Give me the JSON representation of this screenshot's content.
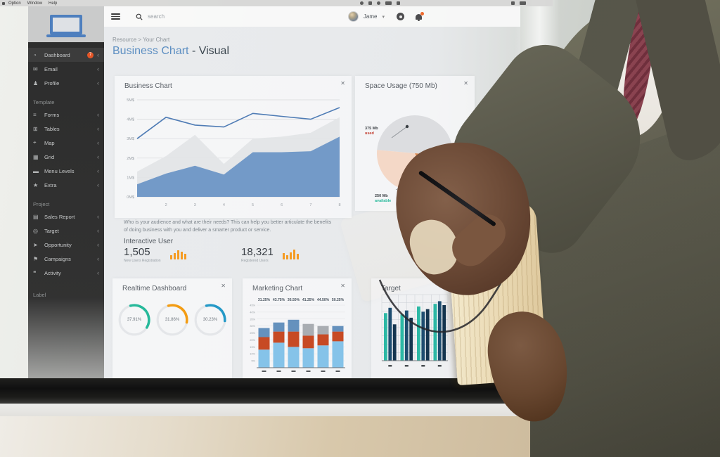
{
  "os_menubar": {
    "items": [
      "Option",
      "Window",
      "Help"
    ]
  },
  "topbar": {
    "search_placeholder": "search",
    "user_name": "Jame"
  },
  "header": {
    "breadcrumb": "Resource > Your Chart",
    "title": "Business Chart",
    "subtitle": " - Visual"
  },
  "sidebar": {
    "main_items": [
      {
        "label": "Dashboard",
        "badge": "7"
      },
      {
        "label": "Email"
      },
      {
        "label": "Profile"
      }
    ],
    "sections": [
      {
        "title": "Template",
        "items": [
          {
            "label": "Forms"
          },
          {
            "label": "Tables"
          },
          {
            "label": "Map"
          },
          {
            "label": "Grid"
          },
          {
            "label": "Menu Levels"
          },
          {
            "label": "Extra"
          }
        ]
      },
      {
        "title": "Project",
        "items": [
          {
            "label": "Sales Report"
          },
          {
            "label": "Target"
          },
          {
            "label": "Opportunity"
          },
          {
            "label": "Campaigns"
          },
          {
            "label": "Activity"
          }
        ]
      }
    ],
    "footer_label": "Label"
  },
  "description": "Who is your audience and what are their needs? This can help you better articulate the benefits of doing business with you and deliver a smarter product or service.",
  "stats": {
    "heading": "Interactive User",
    "items": [
      {
        "value": "1,505",
        "label": "New Users Registration",
        "bars": [
          6,
          9,
          13,
          11,
          8
        ]
      },
      {
        "value": "18,321",
        "label": "Registered Users",
        "bars": [
          9,
          6,
          10,
          14,
          8
        ]
      }
    ]
  },
  "colors": {
    "accent_blue": "#5d8fc2",
    "area_blue": "#6d96c6",
    "area_gray": "#e2e4e6",
    "line_blue": "#4f7cb5",
    "orange": "#f59b22",
    "badge_orange": "#e55627",
    "donut_green": "#26b99a",
    "donut_orange": "#f39c12",
    "donut_blue": "#2499c7",
    "pie_gray": "#dcdde0",
    "pie_orange": "#dd8a52",
    "pie_peach": "#f4d8c7",
    "bar_light_blue": "#85c3e9",
    "bar_red": "#c74a24",
    "bar_steel": "#6591bd",
    "bar_gray": "#a9adb2",
    "target_teal": "#2cb8a5",
    "target_navy": "#1d4d70",
    "target_dark": "#14354f"
  },
  "chart_data": [
    {
      "id": "business_chart",
      "type": "area",
      "title": "Business Chart",
      "x": [
        1,
        2,
        3,
        4,
        5,
        6,
        7,
        8
      ],
      "xticks": [
        "2",
        "3",
        "4",
        "5",
        "6",
        "7",
        "8"
      ],
      "yticks": [
        "0M$",
        "1M$",
        "2M$",
        "3M$",
        "4M$",
        "5M$"
      ],
      "ylim": [
        0,
        5
      ],
      "grid": true,
      "legend": false,
      "series": [
        {
          "name": "revenue-line",
          "type": "line",
          "color": "#4f7cb5",
          "values": [
            3.0,
            4.1,
            3.7,
            3.6,
            4.3,
            4.15,
            4.0,
            4.6
          ]
        },
        {
          "name": "upper-area",
          "type": "area",
          "color": "#e2e4e6",
          "values": [
            1.3,
            2.1,
            3.2,
            1.7,
            3.0,
            3.1,
            3.3,
            4.1
          ]
        },
        {
          "name": "lower-area",
          "type": "area",
          "color": "#6d96c6",
          "values": [
            0.65,
            1.2,
            1.6,
            1.15,
            2.3,
            2.3,
            2.35,
            3.1
          ]
        }
      ]
    },
    {
      "id": "space_usage",
      "type": "pie",
      "title": "Space Usage (750 Mb)",
      "total": 750,
      "unit": "Mb",
      "start_angle": 185,
      "slices": [
        {
          "label": "375 Mb",
          "sublabel": "used",
          "value": 375,
          "color": "#dcdde0"
        },
        {
          "label": "",
          "sublabel": "",
          "value": 125,
          "color": "#dd8a52"
        },
        {
          "label": "250 Mb",
          "sublabel": "available",
          "value": 250,
          "color": "#f4d8c7"
        }
      ]
    },
    {
      "id": "realtime_dashboard",
      "type": "donut",
      "title": "Realtime Dashboard",
      "gauges": [
        {
          "value": 37.91,
          "label": "37.91%",
          "color": "#26b99a"
        },
        {
          "value": 31.86,
          "label": "31.86%",
          "color": "#f39c12"
        },
        {
          "value": 30.23,
          "label": "30.23%",
          "color": "#2499c7"
        }
      ]
    },
    {
      "id": "marketing_chart",
      "type": "stacked_bar",
      "title": "Marketing Chart",
      "ylim": [
        0,
        45
      ],
      "ytick_step": 5,
      "grid": true,
      "columns": [
        {
          "label": "31.25%",
          "segments": [
            {
              "value": 13,
              "color": "#85c3e9"
            },
            {
              "value": 9,
              "color": "#c74a24"
            },
            {
              "value": 6.5,
              "color": "#6591bd"
            }
          ]
        },
        {
          "label": "43.75%",
          "segments": [
            {
              "value": 18,
              "color": "#85c3e9"
            },
            {
              "value": 8,
              "color": "#c74a24"
            },
            {
              "value": 6.5,
              "color": "#6591bd"
            }
          ]
        },
        {
          "label": "36.50%",
          "segments": [
            {
              "value": 15,
              "color": "#85c3e9"
            },
            {
              "value": 11,
              "color": "#c74a24"
            },
            {
              "value": 8.5,
              "color": "#6591bd"
            }
          ]
        },
        {
          "label": "41.25%",
          "segments": [
            {
              "value": 14,
              "color": "#85c3e9"
            },
            {
              "value": 9,
              "color": "#c74a24"
            },
            {
              "value": 8.5,
              "color": "#a9adb2"
            }
          ]
        },
        {
          "label": "44.50%",
          "segments": [
            {
              "value": 16,
              "color": "#85c3e9"
            },
            {
              "value": 8,
              "color": "#c74a24"
            },
            {
              "value": 6,
              "color": "#a9adb2"
            }
          ]
        },
        {
          "label": "50.25%",
          "segments": [
            {
              "value": 19,
              "color": "#85c3e9"
            },
            {
              "value": 7,
              "color": "#c74a24"
            },
            {
              "value": 4,
              "color": "#6591bd"
            }
          ]
        }
      ]
    },
    {
      "id": "target_chart",
      "type": "grouped_bar",
      "title": "Target",
      "ylim": [
        0,
        100
      ],
      "grid": true,
      "colors": [
        "#2cb8a5",
        "#1d4d70",
        "#14354f"
      ],
      "groups": [
        [
          72,
          80,
          55
        ],
        [
          70,
          76,
          65
        ],
        [
          82,
          74,
          78
        ],
        [
          86,
          90,
          84
        ]
      ]
    }
  ]
}
